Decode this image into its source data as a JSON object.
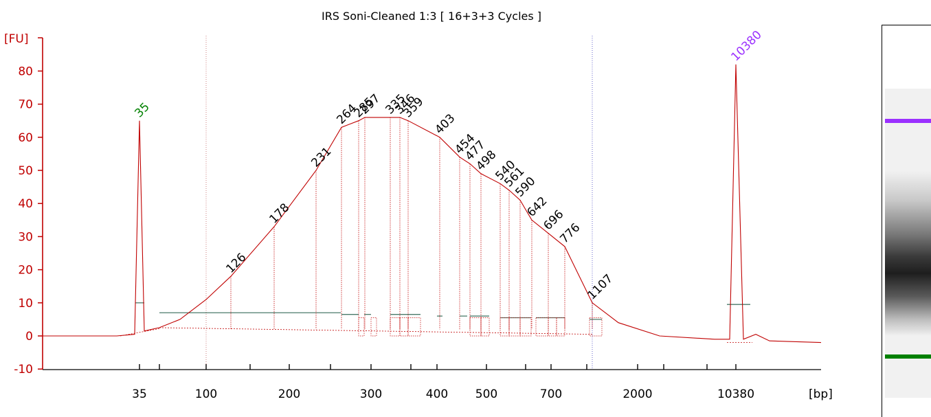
{
  "chart_data": {
    "type": "line",
    "title": "IRS Soni-Cleaned 1:3  [ 16+3+3 Cycles ]",
    "ylabel": "[FU]",
    "xlabel": "[bp]",
    "ylim": [
      -10,
      85
    ],
    "y_ticks": [
      -10,
      0,
      10,
      20,
      30,
      40,
      50,
      60,
      70,
      80
    ],
    "x_tick_labels": [
      "35",
      "100",
      "200",
      "300",
      "400",
      "500",
      "700",
      "2000",
      "10380"
    ],
    "series": [
      {
        "x": [
          "35",
          "126",
          "178",
          "231",
          "264",
          "285",
          "297",
          "335",
          "346",
          "359",
          "403",
          "454",
          "477",
          "498",
          "540",
          "561",
          "590",
          "642",
          "696",
          "776",
          "1107",
          "10380"
        ],
        "values": [
          65,
          18,
          33,
          50,
          63,
          65,
          66,
          66,
          66,
          65,
          60,
          54,
          52,
          49,
          46,
          44,
          41,
          35,
          31,
          27,
          10,
          82
        ]
      }
    ],
    "peak_labels": [
      {
        "label": "35",
        "value": 65,
        "color": "#008000"
      },
      {
        "label": "126",
        "value": 18,
        "color": "#000000"
      },
      {
        "label": "178",
        "value": 33,
        "color": "#000000"
      },
      {
        "label": "231",
        "value": 50,
        "color": "#000000"
      },
      {
        "label": "264",
        "value": 63,
        "color": "#000000"
      },
      {
        "label": "285",
        "value": 65,
        "color": "#000000"
      },
      {
        "label": "297",
        "value": 66,
        "color": "#000000"
      },
      {
        "label": "335",
        "value": 66,
        "color": "#000000"
      },
      {
        "label": "346",
        "value": 66,
        "color": "#000000"
      },
      {
        "label": "359",
        "value": 65,
        "color": "#000000"
      },
      {
        "label": "403",
        "value": 60,
        "color": "#000000"
      },
      {
        "label": "454",
        "value": 54,
        "color": "#000000"
      },
      {
        "label": "477",
        "value": 52,
        "color": "#000000"
      },
      {
        "label": "498",
        "value": 49,
        "color": "#000000"
      },
      {
        "label": "540",
        "value": 46,
        "color": "#000000"
      },
      {
        "label": "561",
        "value": 44,
        "color": "#000000"
      },
      {
        "label": "590",
        "value": 41,
        "color": "#000000"
      },
      {
        "label": "642",
        "value": 35,
        "color": "#000000"
      },
      {
        "label": "696",
        "value": 31,
        "color": "#000000"
      },
      {
        "label": "776",
        "value": 27,
        "color": "#000000"
      },
      {
        "label": "1107",
        "value": 10,
        "color": "#000000"
      },
      {
        "label": "10380",
        "value": 82,
        "color": "#9b30ff"
      }
    ],
    "colors": {
      "trace": "#c00000",
      "axis": "#c00000",
      "region": "#4a7a6a",
      "region_marker": "#4040c0",
      "x_text": "#000000"
    }
  },
  "gel": {
    "upper_marker_color": "#9b30ff",
    "lower_marker_color": "#008000"
  }
}
